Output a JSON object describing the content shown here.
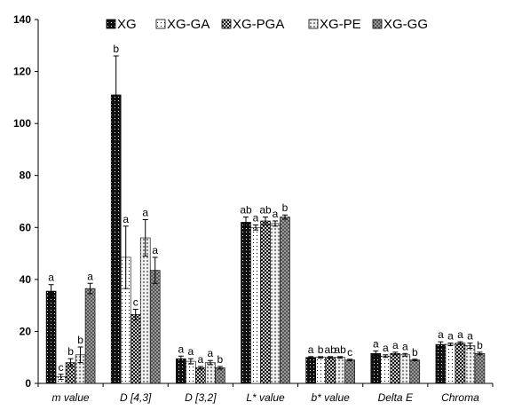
{
  "chart_data": {
    "type": "bar",
    "categories": [
      "m value",
      "D [4,3]",
      "D [3,2]",
      "L* value",
      "b* value",
      "Delta E",
      "Chroma"
    ],
    "ylim": [
      0,
      140
    ],
    "yticks": [
      0,
      20,
      40,
      60,
      80,
      100,
      120,
      140
    ],
    "grid": false,
    "legend_position": "top",
    "series": [
      {
        "name": "XG",
        "pattern": "solid-dots",
        "color": "#111111",
        "values": [
          35.5,
          111,
          9.5,
          62,
          10,
          11.5,
          15
        ],
        "errors": [
          2.5,
          15,
          1,
          2,
          0.3,
          1,
          1
        ],
        "letters": [
          "a",
          "b",
          "a",
          "ab",
          "a",
          "a",
          "a"
        ]
      },
      {
        "name": "XG-GA",
        "pattern": "white-dots",
        "color": "#ffffff",
        "values": [
          2.5,
          48.5,
          8.5,
          60,
          10,
          10.5,
          15
        ],
        "errors": [
          1,
          12,
          1,
          1,
          0.3,
          0.5,
          0.5
        ],
        "letters": [
          "c",
          "a",
          "a",
          "a",
          "b",
          "a",
          "a"
        ]
      },
      {
        "name": "XG-PGA",
        "pattern": "dark-checker",
        "color": "#222222",
        "values": [
          8,
          26.5,
          6,
          62.5,
          10,
          11.5,
          15.5
        ],
        "errors": [
          1.5,
          2,
          0.5,
          1.5,
          0.3,
          0.5,
          0.5
        ],
        "letters": [
          "b",
          "c",
          "a",
          "ab",
          "ab",
          "a",
          "a"
        ]
      },
      {
        "name": "XG-PE",
        "pattern": "light-dots",
        "color": "#dddddd",
        "values": [
          11,
          56,
          8,
          61.5,
          10,
          11,
          14.5
        ],
        "errors": [
          3,
          7,
          0.8,
          1,
          0.3,
          0.5,
          1
        ],
        "letters": [
          "b",
          "a",
          "a",
          "a",
          "ab",
          "a",
          "a"
        ]
      },
      {
        "name": "XG-GG",
        "pattern": "gray-checker",
        "color": "#888888",
        "values": [
          36.5,
          43.5,
          6,
          64,
          9,
          9,
          11.5
        ],
        "errors": [
          2,
          5,
          0.5,
          0.8,
          0.3,
          0.3,
          0.5
        ],
        "letters": [
          "a",
          "a",
          "b",
          "b",
          "c",
          "b",
          "b"
        ]
      }
    ]
  }
}
